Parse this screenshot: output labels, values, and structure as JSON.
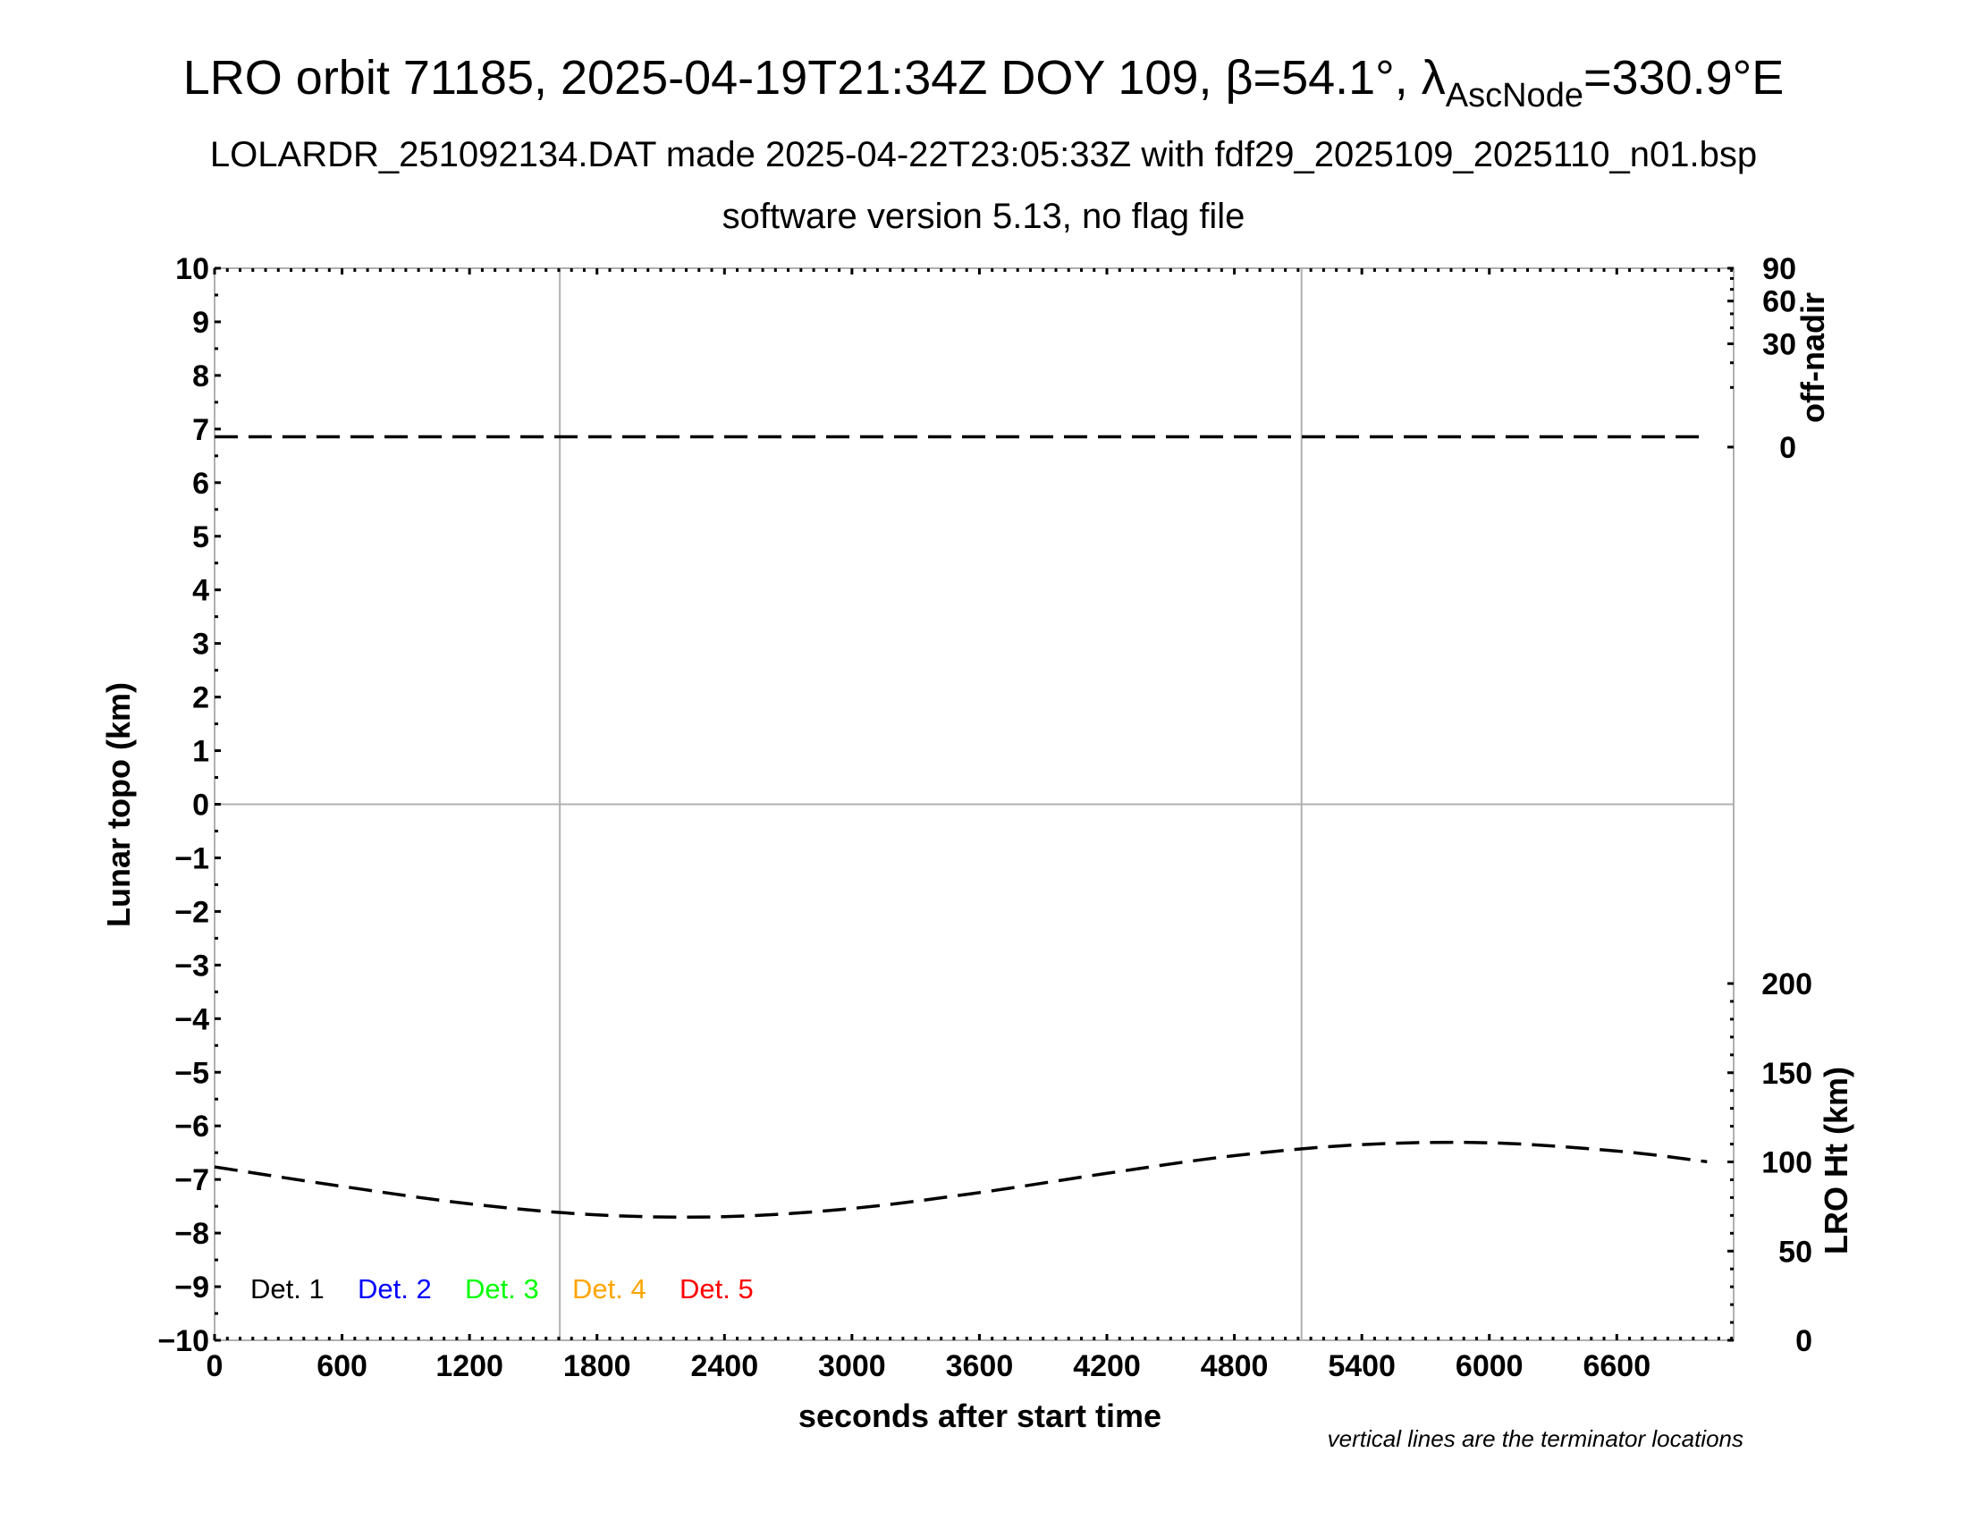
{
  "chart_data": {
    "type": "line",
    "title": "LRO orbit 71185, 2025-04-19T21:34Z DOY 109, β=54.1°, λ",
    "title_subscript": "AscNode",
    "title_suffix": "=330.9°E",
    "subtitle": "LOLARDR_251092134.DAT made 2025-04-22T23:05:33Z with fdf29_2025109_2025110_n01.bsp",
    "subtitle2": "software version 5.13, no flag file",
    "xlabel": "seconds after start time",
    "ylabel": "Lunar topo (km)",
    "y2label_top": "off-nadir",
    "y2label_bottom": "LRO Ht (km)",
    "note": "vertical lines are the terminator locations",
    "xlim": [
      0,
      7150
    ],
    "ylim": [
      -10,
      10
    ],
    "xticks": [
      "0",
      "600",
      "1200",
      "1800",
      "2400",
      "3000",
      "3600",
      "4200",
      "4800",
      "5400",
      "6000",
      "6600"
    ],
    "yticks": [
      "10",
      "9",
      "8",
      "7",
      "6",
      "5",
      "4",
      "3",
      "2",
      "1",
      "0",
      "−1",
      "−2",
      "−3",
      "−4",
      "−5",
      "−6",
      "−7",
      "−8",
      "−9",
      "−10"
    ],
    "offnadir_ticks": [
      "90",
      "60",
      "30",
      "0"
    ],
    "offnadir_scale": "sqrt",
    "offnadir_lim": [
      0,
      90
    ],
    "ht_ticks": [
      "200",
      "150",
      "100",
      "50",
      "0"
    ],
    "ht_lim": [
      0,
      200
    ],
    "terminators_s": [
      1625,
      5116
    ],
    "grid": "zero line and terminator lines only",
    "legend": [
      {
        "label": "Det. 1",
        "color": "#000000"
      },
      {
        "label": "Det. 2",
        "color": "#0000ff"
      },
      {
        "label": "Det. 3",
        "color": "#00ff00"
      },
      {
        "label": "Det. 4",
        "color": "#ffa500"
      },
      {
        "label": "Det. 5",
        "color": "#ff0000"
      }
    ],
    "legend_placement": "bottom-left",
    "series": [
      {
        "axis": "off-nadir (deg)",
        "style": "dashed",
        "x": [
          0,
          1200,
          2400,
          3600,
          4800,
          6000,
          7025
        ],
        "y": [
          0.3,
          0.3,
          0.3,
          0.3,
          0.3,
          0.3,
          0.3
        ]
      },
      {
        "axis": "LRO Ht (km)",
        "style": "dashed",
        "x": [
          0,
          600,
          1200,
          1800,
          2400,
          3000,
          3600,
          4200,
          4800,
          5400,
          6000,
          6600,
          7025
        ],
        "y": [
          97.2,
          86.3,
          76.5,
          70.3,
          69.3,
          73.9,
          82.8,
          93.6,
          103.5,
          109.7,
          110.7,
          106.1,
          100.1
        ]
      }
    ]
  }
}
